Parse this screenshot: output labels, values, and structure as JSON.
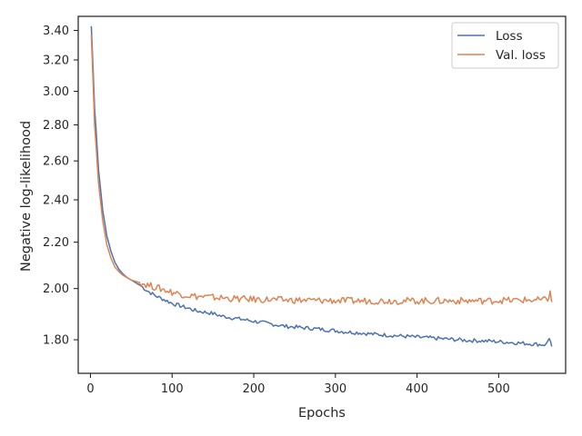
{
  "chart_data": {
    "type": "line",
    "xlabel": "Epochs",
    "ylabel": "Negative log-likelihood",
    "y_scale": "log",
    "xlim": [
      -15,
      582
    ],
    "ylim": [
      1.68,
      3.5
    ],
    "x_ticks": [
      0,
      100,
      200,
      300,
      400,
      500
    ],
    "x_tick_labels": [
      "0",
      "100",
      "200",
      "300",
      "400",
      "500"
    ],
    "y_ticks": [
      1.8,
      2.0,
      2.2,
      2.4,
      2.6,
      2.8,
      3.0,
      3.2,
      3.4
    ],
    "y_tick_labels": [
      "1.80",
      "2.00",
      "2.20",
      "2.40",
      "2.60",
      "2.80",
      "3.00",
      "3.20",
      "3.40"
    ],
    "grid": false,
    "legend_position": "top-right",
    "series": [
      {
        "name": "Loss",
        "color": "#4c72b0",
        "x": [
          1,
          5,
          10,
          15,
          20,
          25,
          30,
          35,
          40,
          45,
          50,
          55,
          60,
          70,
          80,
          90,
          100,
          110,
          120,
          130,
          140,
          150,
          160,
          170,
          180,
          190,
          200,
          210,
          220,
          230,
          240,
          250,
          260,
          270,
          280,
          290,
          300,
          310,
          320,
          330,
          340,
          350,
          360,
          370,
          380,
          390,
          400,
          410,
          420,
          430,
          440,
          450,
          460,
          470,
          480,
          490,
          500,
          510,
          520,
          530,
          540,
          550,
          558,
          562,
          565
        ],
        "y": [
          3.43,
          2.9,
          2.55,
          2.35,
          2.23,
          2.16,
          2.11,
          2.08,
          2.06,
          2.045,
          2.035,
          2.025,
          2.015,
          1.99,
          1.97,
          1.955,
          1.94,
          1.93,
          1.92,
          1.91,
          1.905,
          1.9,
          1.89,
          1.885,
          1.88,
          1.875,
          1.87,
          1.865,
          1.86,
          1.855,
          1.85,
          1.848,
          1.845,
          1.843,
          1.84,
          1.837,
          1.834,
          1.83,
          1.828,
          1.826,
          1.823,
          1.82,
          1.818,
          1.816,
          1.814,
          1.812,
          1.81,
          1.808,
          1.806,
          1.804,
          1.802,
          1.8,
          1.798,
          1.797,
          1.796,
          1.795,
          1.793,
          1.791,
          1.789,
          1.787,
          1.785,
          1.783,
          1.782,
          1.808,
          1.775
        ]
      },
      {
        "name": "Val. loss",
        "color": "#dd8452",
        "x": [
          1,
          5,
          10,
          15,
          20,
          25,
          30,
          35,
          40,
          45,
          50,
          55,
          60,
          70,
          80,
          90,
          100,
          110,
          120,
          130,
          140,
          150,
          160,
          170,
          180,
          190,
          200,
          210,
          220,
          230,
          240,
          250,
          260,
          270,
          280,
          290,
          300,
          310,
          320,
          330,
          340,
          350,
          360,
          370,
          380,
          390,
          400,
          410,
          420,
          430,
          440,
          450,
          460,
          470,
          480,
          490,
          500,
          510,
          520,
          530,
          540,
          550,
          560,
          563,
          565
        ],
        "y": [
          3.37,
          2.8,
          2.48,
          2.3,
          2.19,
          2.13,
          2.09,
          2.07,
          2.055,
          2.045,
          2.035,
          2.03,
          2.025,
          2.015,
          2.005,
          1.995,
          1.985,
          1.978,
          1.972,
          1.968,
          1.966,
          1.964,
          1.962,
          1.96,
          1.958,
          1.957,
          1.956,
          1.955,
          1.955,
          1.954,
          1.953,
          1.953,
          1.952,
          1.952,
          1.951,
          1.951,
          1.951,
          1.95,
          1.95,
          1.95,
          1.95,
          1.95,
          1.95,
          1.95,
          1.95,
          1.95,
          1.95,
          1.95,
          1.95,
          1.95,
          1.95,
          1.95,
          1.95,
          1.95,
          1.95,
          1.95,
          1.952,
          1.952,
          1.952,
          1.953,
          1.953,
          1.953,
          1.954,
          1.99,
          1.945
        ]
      }
    ]
  }
}
